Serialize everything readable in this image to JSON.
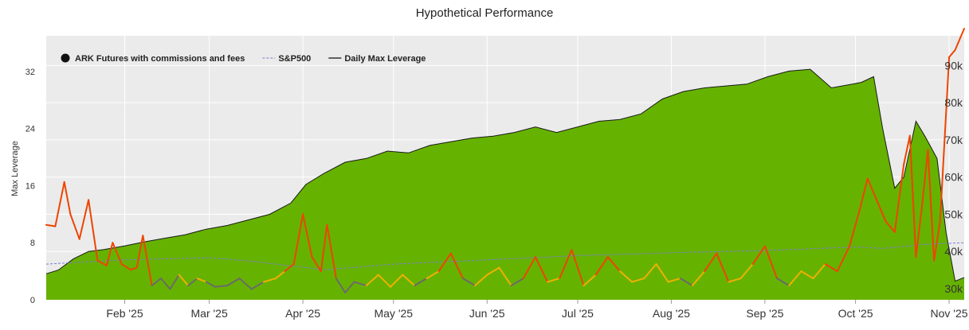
{
  "chart_data": {
    "type": "area",
    "title": "Hypothetical Performance",
    "ylabel": "Max Leverage",
    "ylim": [
      0,
      37
    ],
    "y2lim": [
      27000,
      98000
    ],
    "yticks": [
      0,
      8,
      16,
      24,
      32
    ],
    "y2ticks": [
      "30k",
      "40k",
      "50k",
      "60k",
      "70k",
      "80k",
      "90k"
    ],
    "y2tick_values": [
      30000,
      40000,
      50000,
      60000,
      70000,
      80000,
      90000
    ],
    "xlim": [
      "2025-01-06",
      "2025-11-06"
    ],
    "xticks": [
      {
        "date": "2025-02-01",
        "label": "Feb '25"
      },
      {
        "date": "2025-03-01",
        "label": "Mar '25"
      },
      {
        "date": "2025-04-01",
        "label": "Apr '25"
      },
      {
        "date": "2025-05-01",
        "label": "May '25"
      },
      {
        "date": "2025-06-01",
        "label": "Jun '25"
      },
      {
        "date": "2025-07-01",
        "label": "Jul '25"
      },
      {
        "date": "2025-08-01",
        "label": "Aug '25"
      },
      {
        "date": "2025-09-01",
        "label": "Sep '25"
      },
      {
        "date": "2025-10-01",
        "label": "Oct '25"
      },
      {
        "date": "2025-11-01",
        "label": "Nov '25"
      }
    ],
    "grid": true,
    "legend_position": "top-left",
    "legend": [
      {
        "label": "ARK Futures with commissions and fees",
        "marker": "dot"
      },
      {
        "label": "S&P500",
        "marker": "dashed-line"
      },
      {
        "label": "Daily Max Leverage",
        "marker": "line"
      }
    ],
    "colors": {
      "equity_fill": "#66b200",
      "equity_line": "#1a1a1a",
      "sp500": "#7b7bd4",
      "leverage_low": "#6b6b6b",
      "leverage_mid": "#f0b000",
      "leverage_high": "#ee4400",
      "plot_bg": "#ebebeb",
      "grid": "#ffffff"
    },
    "series": [
      {
        "name": "ARK Futures with commissions and fees",
        "axis": "right",
        "x": [
          "2025-01-06",
          "2025-01-10",
          "2025-01-15",
          "2025-01-20",
          "2025-01-25",
          "2025-02-01",
          "2025-02-07",
          "2025-02-14",
          "2025-02-21",
          "2025-02-28",
          "2025-03-07",
          "2025-03-14",
          "2025-03-21",
          "2025-03-28",
          "2025-04-02",
          "2025-04-08",
          "2025-04-15",
          "2025-04-22",
          "2025-04-29",
          "2025-05-06",
          "2025-05-13",
          "2025-05-20",
          "2025-05-27",
          "2025-06-03",
          "2025-06-10",
          "2025-06-17",
          "2025-06-24",
          "2025-07-01",
          "2025-07-08",
          "2025-07-15",
          "2025-07-22",
          "2025-07-29",
          "2025-08-05",
          "2025-08-12",
          "2025-08-19",
          "2025-08-26",
          "2025-09-02",
          "2025-09-09",
          "2025-09-16",
          "2025-09-23",
          "2025-09-30",
          "2025-10-03",
          "2025-10-07",
          "2025-10-10",
          "2025-10-14",
          "2025-10-17",
          "2025-10-21",
          "2025-10-24",
          "2025-10-28",
          "2025-10-31",
          "2025-11-03",
          "2025-11-06"
        ],
        "values": [
          34000,
          35000,
          38000,
          40000,
          40500,
          41500,
          42500,
          43500,
          44500,
          46000,
          47000,
          48500,
          50000,
          53000,
          58000,
          61000,
          64000,
          65000,
          67000,
          66500,
          68500,
          69500,
          70500,
          71000,
          72000,
          73500,
          72000,
          73500,
          75000,
          75500,
          77000,
          81000,
          83000,
          84000,
          84500,
          85000,
          87000,
          88500,
          89000,
          84000,
          85000,
          85500,
          87000,
          73000,
          57000,
          60000,
          75000,
          71000,
          65000,
          45000,
          32000,
          33000
        ]
      },
      {
        "name": "S&P500",
        "axis": "left",
        "x": [
          "2025-01-06",
          "2025-02-01",
          "2025-03-01",
          "2025-03-15",
          "2025-04-08",
          "2025-04-20",
          "2025-05-01",
          "2025-06-01",
          "2025-07-01",
          "2025-08-01",
          "2025-09-01",
          "2025-10-01",
          "2025-10-10",
          "2025-10-25",
          "2025-11-06"
        ],
        "values": [
          5.0,
          5.6,
          5.9,
          5.4,
          4.2,
          4.6,
          5.0,
          5.6,
          6.2,
          6.6,
          6.9,
          7.4,
          7.2,
          7.8,
          8.0
        ]
      },
      {
        "name": "Daily Max Leverage",
        "axis": "left",
        "x": [
          "2025-01-06",
          "2025-01-09",
          "2025-01-12",
          "2025-01-14",
          "2025-01-17",
          "2025-01-20",
          "2025-01-23",
          "2025-01-26",
          "2025-01-28",
          "2025-01-31",
          "2025-02-03",
          "2025-02-05",
          "2025-02-07",
          "2025-02-10",
          "2025-02-13",
          "2025-02-16",
          "2025-02-19",
          "2025-02-22",
          "2025-02-25",
          "2025-02-28",
          "2025-03-03",
          "2025-03-07",
          "2025-03-11",
          "2025-03-15",
          "2025-03-19",
          "2025-03-23",
          "2025-03-26",
          "2025-03-29",
          "2025-04-01",
          "2025-04-04",
          "2025-04-07",
          "2025-04-09",
          "2025-04-12",
          "2025-04-15",
          "2025-04-18",
          "2025-04-22",
          "2025-04-26",
          "2025-04-30",
          "2025-05-04",
          "2025-05-08",
          "2025-05-12",
          "2025-05-16",
          "2025-05-20",
          "2025-05-24",
          "2025-05-28",
          "2025-06-01",
          "2025-06-05",
          "2025-06-09",
          "2025-06-13",
          "2025-06-17",
          "2025-06-21",
          "2025-06-25",
          "2025-06-29",
          "2025-07-03",
          "2025-07-07",
          "2025-07-11",
          "2025-07-15",
          "2025-07-19",
          "2025-07-23",
          "2025-07-27",
          "2025-07-31",
          "2025-08-04",
          "2025-08-08",
          "2025-08-12",
          "2025-08-16",
          "2025-08-20",
          "2025-08-24",
          "2025-08-28",
          "2025-09-01",
          "2025-09-05",
          "2025-09-09",
          "2025-09-13",
          "2025-09-17",
          "2025-09-21",
          "2025-09-25",
          "2025-09-29",
          "2025-10-02",
          "2025-10-05",
          "2025-10-08",
          "2025-10-11",
          "2025-10-14",
          "2025-10-17",
          "2025-10-19",
          "2025-10-21",
          "2025-10-23",
          "2025-10-25",
          "2025-10-27",
          "2025-10-29",
          "2025-11-01",
          "2025-11-03",
          "2025-11-06"
        ],
        "values": [
          10.5,
          10.3,
          16.5,
          12.0,
          8.5,
          14.0,
          5.5,
          4.8,
          8.0,
          5.0,
          4.2,
          4.5,
          9.0,
          2.0,
          3.0,
          1.5,
          3.5,
          2.0,
          3.0,
          2.5,
          1.8,
          2.0,
          3.0,
          1.5,
          2.5,
          3.0,
          4.0,
          5.0,
          12.0,
          6.0,
          4.0,
          10.5,
          3.0,
          1.0,
          2.5,
          2.0,
          3.5,
          1.8,
          3.5,
          2.0,
          3.0,
          4.0,
          6.5,
          3.0,
          2.0,
          3.5,
          4.5,
          2.0,
          3.0,
          6.0,
          2.5,
          3.0,
          7.0,
          2.0,
          3.5,
          6.0,
          4.0,
          2.5,
          3.0,
          5.0,
          2.5,
          3.0,
          2.0,
          4.0,
          6.5,
          2.5,
          3.0,
          5.0,
          7.5,
          3.0,
          2.0,
          4.0,
          3.0,
          5.0,
          4.0,
          7.5,
          12.0,
          17.0,
          14.0,
          11.0,
          9.5,
          19.0,
          23.0,
          6.0,
          13.0,
          21.0,
          5.5,
          11.0,
          34.0,
          35.0,
          38.0
        ]
      }
    ]
  }
}
